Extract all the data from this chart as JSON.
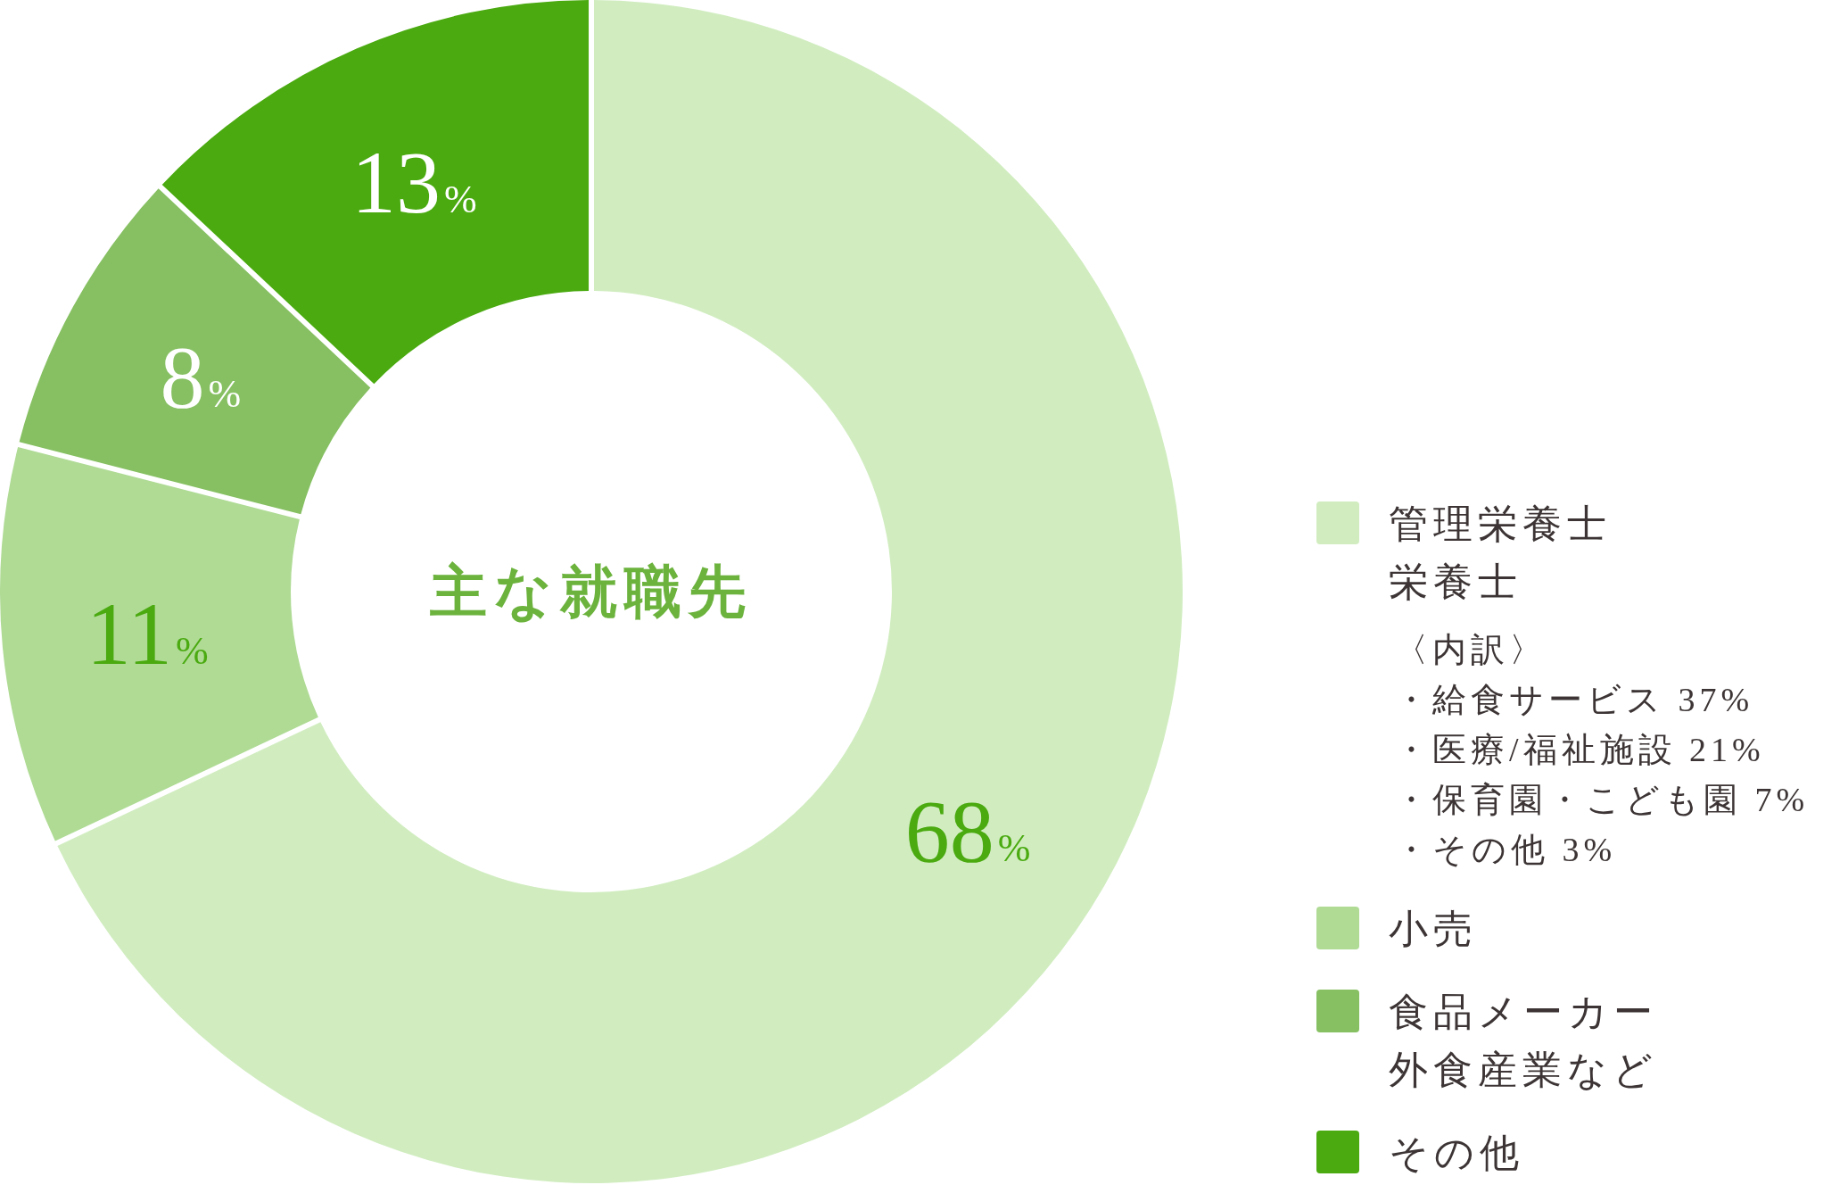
{
  "chart_data": {
    "type": "donut",
    "title": "主な就職先",
    "categories": [
      "管理栄養士栄養士",
      "小売",
      "食品メーカー外食産業など",
      "その他"
    ],
    "values": [
      68,
      11,
      8,
      13
    ],
    "colors": [
      "#d1edc0",
      "#afdb95",
      "#86c062",
      "#4aaa10"
    ],
    "value_labels": [
      "68%",
      "11%",
      "8%",
      "13%"
    ],
    "legend": "right",
    "annotations": [
      "〈内訳〉",
      "・給食サービス 37%",
      "・医療/福祉施設 21%",
      "・保育園・こども園 7%",
      "・その他 3%"
    ]
  }
}
